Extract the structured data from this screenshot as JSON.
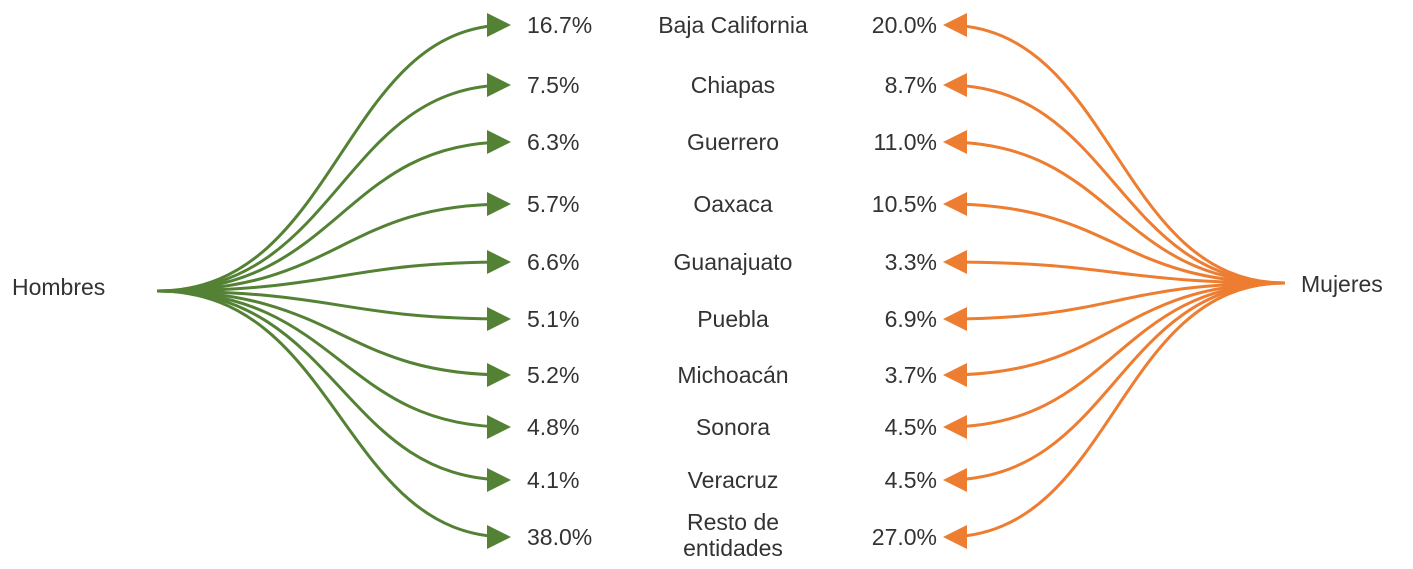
{
  "left_label": "Hombres",
  "right_label": "Mujeres",
  "rows": [
    {
      "state": "Baja California",
      "hombres": "16.7%",
      "mujeres": "20.0%"
    },
    {
      "state": "Chiapas",
      "hombres": "7.5%",
      "mujeres": "8.7%"
    },
    {
      "state": "Guerrero",
      "hombres": "6.3%",
      "mujeres": "11.0%"
    },
    {
      "state": "Oaxaca",
      "hombres": "5.7%",
      "mujeres": "10.5%"
    },
    {
      "state": "Guanajuato",
      "hombres": "6.6%",
      "mujeres": "3.3%"
    },
    {
      "state": "Puebla",
      "hombres": "5.1%",
      "mujeres": "6.9%"
    },
    {
      "state": "Michoacán",
      "hombres": "5.2%",
      "mujeres": "3.7%"
    },
    {
      "state": "Sonora",
      "hombres": "4.8%",
      "mujeres": "4.5%"
    },
    {
      "state": "Veracruz",
      "hombres": "4.1%",
      "mujeres": "4.5%"
    },
    {
      "state": "Resto de entidades",
      "hombres": "38.0%",
      "mujeres": "27.0%"
    }
  ]
}
